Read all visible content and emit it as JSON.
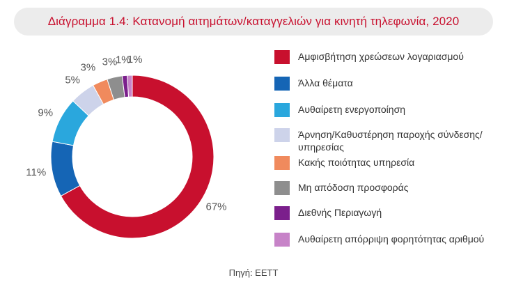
{
  "title": "Διάγραμμα 1.4: Κατανομή αιτημάτων/καταγγελιών για κινητή τηλεφωνία, 2020",
  "source": "Πηγή: ΕΕΤΤ",
  "chart_data": {
    "type": "pie",
    "variant": "donut",
    "title": "Διάγραμμα 1.4: Κατανομή αιτημάτων/καταγγελιών για κινητή τηλεφωνία, 2020",
    "legend_placement": "right",
    "categories": [
      "Αμφισβήτηση χρεώσεων λογαριασμού",
      "Άλλα θέματα",
      "Αυθαίρετη ενεργοποίηση",
      "Άρνηση/Καθυστέρηση παροχής σύνδεσης/ υπηρεσίας",
      "Κακής ποιότητας υπηρεσία",
      "Μη απόδοση προσφοράς",
      "Διεθνής Περιαγωγή",
      "Αυθαίρετη απόρριψη φορητότητας αριθμού"
    ],
    "values": [
      67,
      11,
      9,
      5,
      3,
      3,
      1,
      1
    ],
    "data_labels": [
      "67%",
      "11%",
      "9%",
      "5%",
      "3%",
      "3%",
      "1%",
      "1%"
    ],
    "colors": [
      "#c8102e",
      "#1565b5",
      "#2aa7dd",
      "#cdd3ea",
      "#f08a5d",
      "#8e8e8e",
      "#7b1f8c",
      "#c783c8"
    ]
  }
}
